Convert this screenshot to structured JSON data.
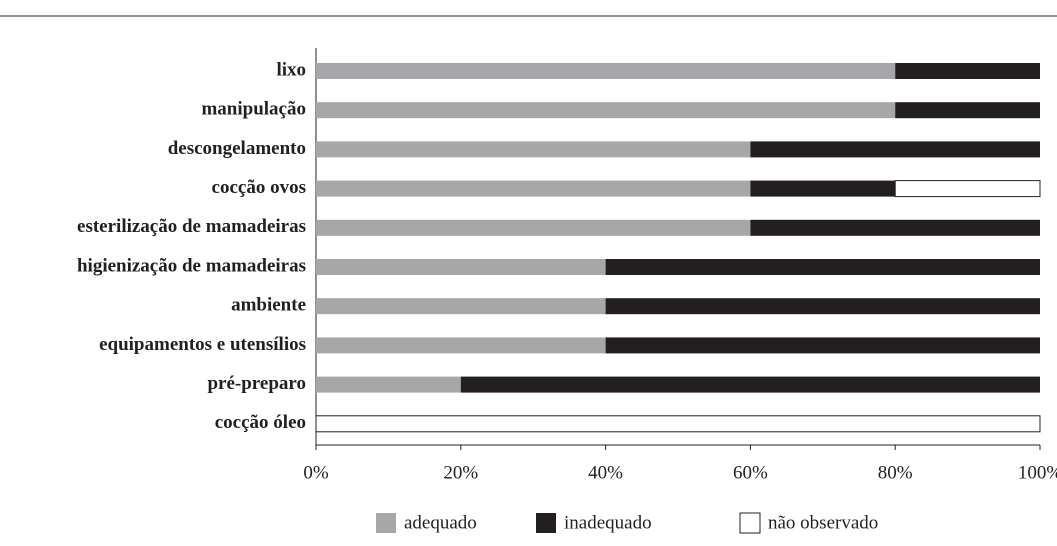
{
  "chart_data": {
    "type": "stacked_barh",
    "categories": [
      "lixo",
      "manipulação",
      "descongelamento",
      "cocção ovos",
      "esterilização de mamadeiras",
      "higienização de mamadeiras",
      "ambiente",
      "equipamentos e utensílios",
      "pré-preparo",
      "cocção óleo"
    ],
    "series": [
      {
        "name": "adequado",
        "color": "#a7a7a9",
        "values": [
          80,
          80,
          60,
          60,
          60,
          40,
          40,
          40,
          20,
          0
        ]
      },
      {
        "name": "inadequado",
        "color": "#231f20",
        "values": [
          20,
          20,
          40,
          20,
          40,
          60,
          60,
          60,
          80,
          0
        ]
      },
      {
        "name": "não observado",
        "color": "#ffffff",
        "values": [
          0,
          0,
          0,
          20,
          0,
          0,
          0,
          0,
          0,
          100
        ]
      }
    ],
    "xlim": [
      0,
      100
    ],
    "xticks": [
      {
        "value": 0,
        "label": "0%"
      },
      {
        "value": 20,
        "label": "20%"
      },
      {
        "value": 40,
        "label": "40%"
      },
      {
        "value": 60,
        "label": "60%"
      },
      {
        "value": 80,
        "label": "80%"
      },
      {
        "value": 100,
        "label": "100%"
      }
    ],
    "legend": "bottom"
  }
}
